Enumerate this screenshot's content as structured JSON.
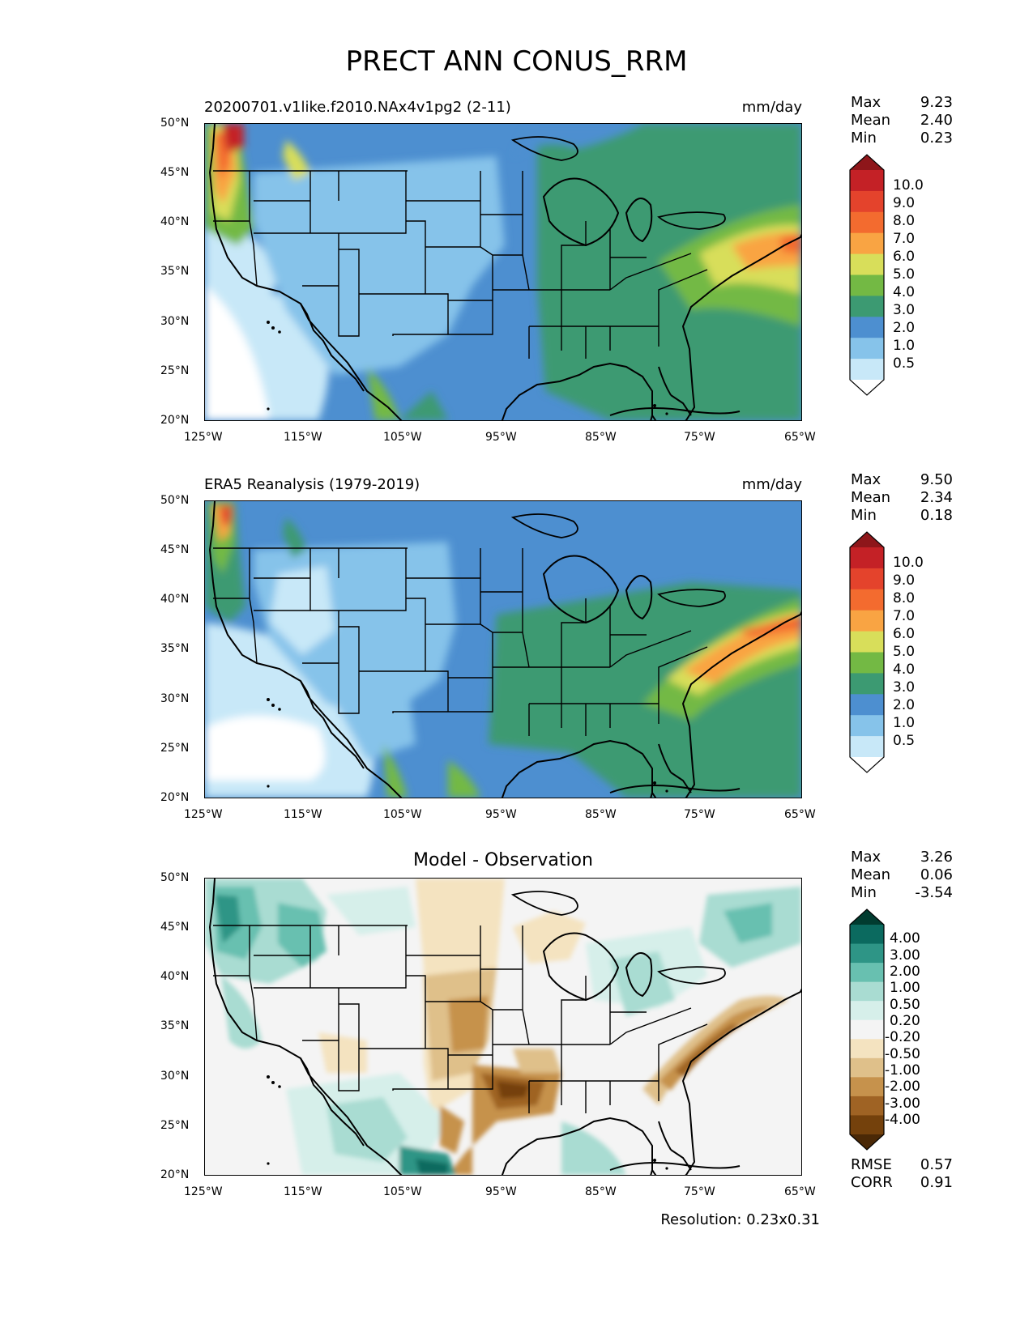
{
  "figure": {
    "title": "PRECT ANN CONUS_RRM",
    "resolution": "Resolution: 0.23x0.31",
    "lat_ticks": [
      "50°N",
      "45°N",
      "40°N",
      "35°N",
      "30°N",
      "25°N",
      "20°N"
    ],
    "lon_ticks": [
      "125°W",
      "115°W",
      "105°W",
      "95°W",
      "85°W",
      "75°W",
      "65°W"
    ],
    "lat_range": [
      20,
      50
    ],
    "lon_range": [
      -125,
      -65
    ]
  },
  "panels": [
    {
      "id": "model",
      "left_title": "20200701.v1like.f2010.NAx4v1pg2 (2-11)",
      "right_title": "mm/day",
      "stats": [
        {
          "label": "Max",
          "value": "9.23"
        },
        {
          "label": "Mean",
          "value": "2.40"
        },
        {
          "label": "Min",
          "value": "0.23"
        }
      ],
      "colorbar": {
        "labels": [
          "10.0",
          "9.0",
          "8.0",
          "7.0",
          "6.0",
          "5.0",
          "4.0",
          "3.0",
          "2.0",
          "1.0",
          "0.5"
        ],
        "colors": [
          "#8e161a",
          "#c42126",
          "#e4432c",
          "#f36b2f",
          "#f9a443",
          "#d8de5a",
          "#73b944",
          "#3c9a72",
          "#4d8fd0",
          "#86c3ea",
          "#c8e8f8",
          "#ffffff"
        ]
      }
    },
    {
      "id": "obs",
      "left_title": "ERA5 Reanalysis (1979-2019)",
      "right_title": "mm/day",
      "stats": [
        {
          "label": "Max",
          "value": "9.50"
        },
        {
          "label": "Mean",
          "value": "2.34"
        },
        {
          "label": "Min",
          "value": "0.18"
        }
      ],
      "colorbar": {
        "labels": [
          "10.0",
          "9.0",
          "8.0",
          "7.0",
          "6.0",
          "5.0",
          "4.0",
          "3.0",
          "2.0",
          "1.0",
          "0.5"
        ],
        "colors": [
          "#8e161a",
          "#c42126",
          "#e4432c",
          "#f36b2f",
          "#f9a443",
          "#d8de5a",
          "#73b944",
          "#3c9a72",
          "#4d8fd0",
          "#86c3ea",
          "#c8e8f8",
          "#ffffff"
        ]
      }
    },
    {
      "id": "diff",
      "center_title": "Model - Observation",
      "stats": [
        {
          "label": "Max",
          "value": "3.26"
        },
        {
          "label": "Mean",
          "value": "0.06"
        },
        {
          "label": "Min",
          "value": "-3.54"
        }
      ],
      "colorbar": {
        "labels": [
          "4.00",
          "3.00",
          "2.00",
          "1.00",
          "0.50",
          "0.20",
          "-0.20",
          "-0.50",
          "-1.00",
          "-2.00",
          "-3.00",
          "-4.00"
        ],
        "colors": [
          "#013c30",
          "#0b6a5f",
          "#2e9586",
          "#68c0b0",
          "#a9dcd2",
          "#d6efea",
          "#f4f4f4",
          "#f4e3c0",
          "#dfc08a",
          "#c6924c",
          "#9f6324",
          "#74410c",
          "#4a2806"
        ]
      },
      "metrics": [
        {
          "label": "RMSE",
          "value": "0.57"
        },
        {
          "label": "CORR",
          "value": "0.91"
        }
      ]
    }
  ]
}
